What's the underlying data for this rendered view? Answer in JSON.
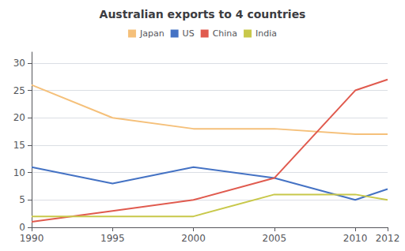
{
  "chart_data": {
    "type": "line",
    "title": "Australian exports to 4 countries",
    "x": [
      1990,
      1995,
      2000,
      2005,
      2010,
      2012
    ],
    "series": [
      {
        "name": "Japan",
        "color": "#F5C07A",
        "values": [
          26,
          20,
          18,
          18,
          17,
          17
        ]
      },
      {
        "name": "US",
        "color": "#4472C4",
        "values": [
          11,
          8,
          11,
          9,
          5,
          7
        ]
      },
      {
        "name": "China",
        "color": "#E05A4E",
        "values": [
          1,
          3,
          5,
          9,
          25,
          27
        ]
      },
      {
        "name": "India",
        "color": "#C8C84A",
        "values": [
          2,
          2,
          2,
          6,
          6,
          5
        ]
      }
    ],
    "xlim": [
      1990,
      2012
    ],
    "xticks": [
      1990,
      1995,
      2000,
      2005,
      2010,
      2012
    ],
    "ylim": [
      0,
      32
    ],
    "yticks": [
      0,
      5,
      10,
      15,
      20,
      25,
      30
    ],
    "grid": true,
    "legend": "top"
  }
}
